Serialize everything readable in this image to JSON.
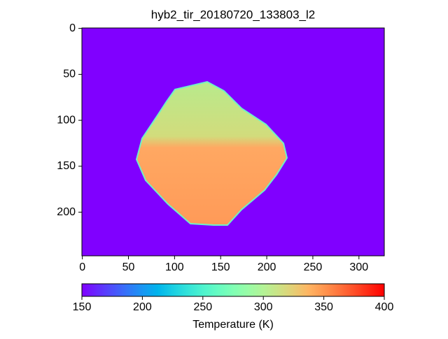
{
  "chart_data": {
    "type": "image",
    "title": "hyb2_tir_20180720_133803_l2",
    "xlim": [
      -0.5,
      327.5
    ],
    "xticks": [
      0,
      50,
      100,
      150,
      200,
      250,
      300
    ],
    "ylim": [
      247.5,
      -0.5
    ],
    "yticks": [
      0,
      50,
      100,
      150,
      200
    ],
    "colorbar": {
      "label": "Temperature (K)",
      "cmap": "rainbow",
      "clim": [
        150,
        400
      ],
      "ticks": [
        150,
        200,
        250,
        300,
        350,
        400
      ]
    }
  }
}
